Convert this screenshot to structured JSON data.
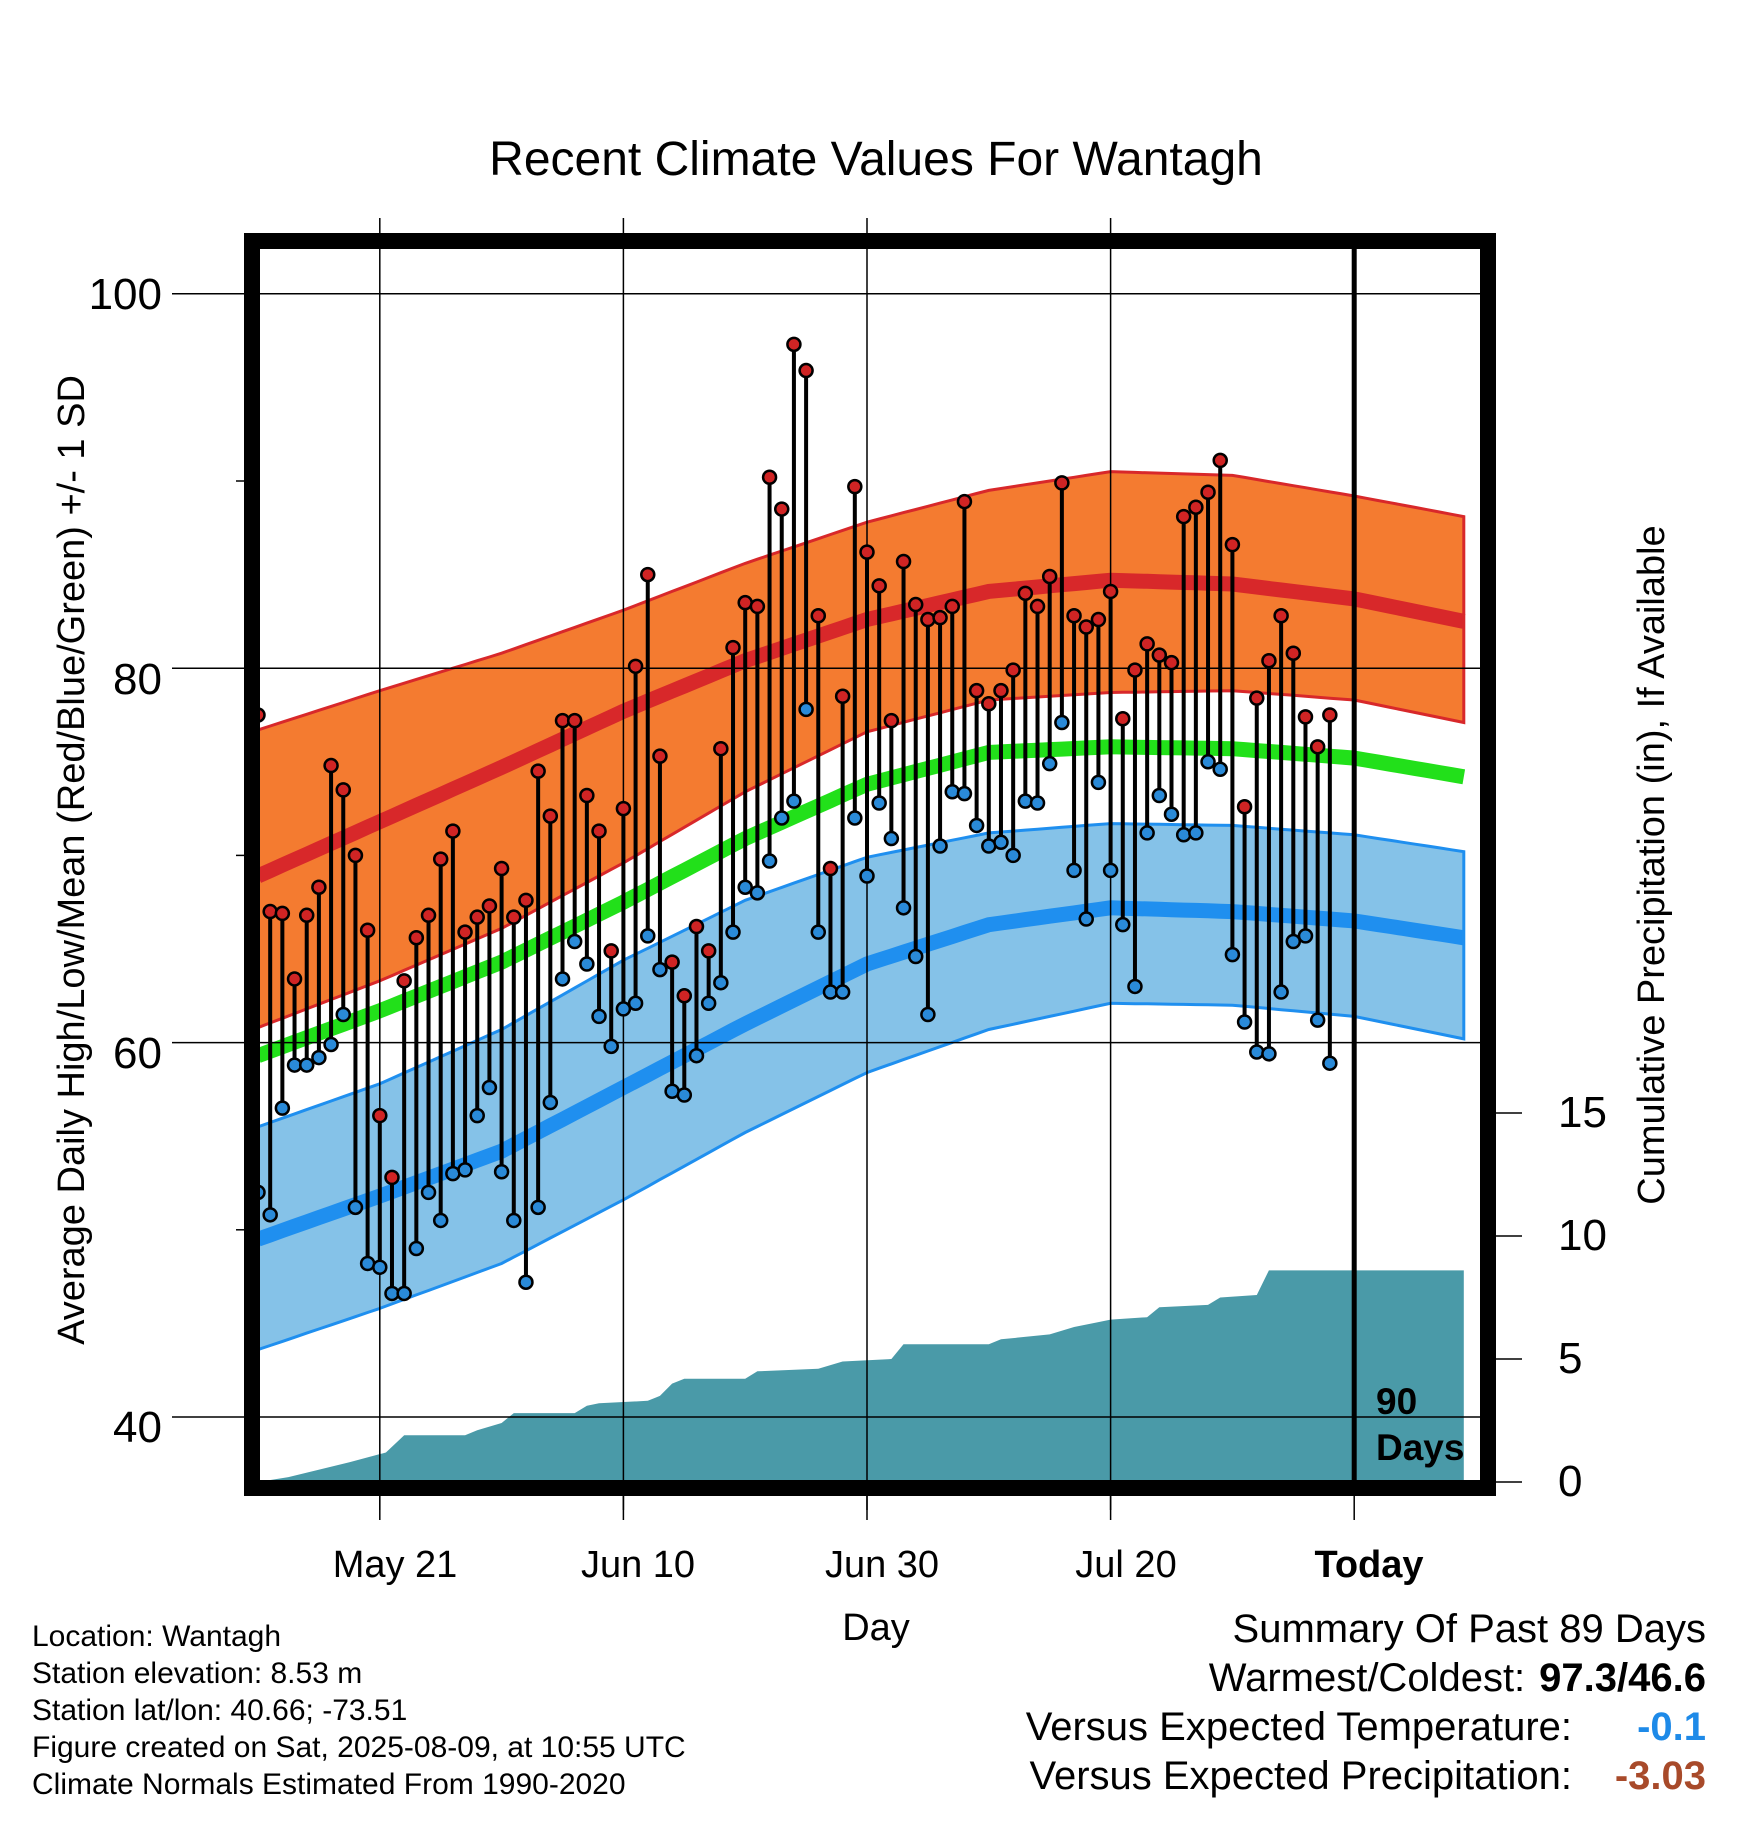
{
  "title": "Recent Climate Values For Wantagh",
  "xlabel": "Day",
  "ylabel_left": "Average Daily High/Low/Mean (Red/Blue/Green) +/- 1 SD",
  "ylabel_right": "Cumulative Precipitation (in), If Available",
  "x_tick_labels": [
    "May 21",
    "Jun 10",
    "Jun 30",
    "Jul 20",
    "Today"
  ],
  "y_left_ticks": [
    "40",
    "60",
    "80",
    "100"
  ],
  "y_right_ticks": [
    "0",
    "5",
    "10",
    "15"
  ],
  "today_marker": {
    "line1": "90",
    "line2": "Days"
  },
  "info": [
    "Location: Wantagh",
    "Station elevation: 8.53 m",
    "Station lat/lon: 40.66; -73.51",
    "Figure created on Sat, 2025-08-09, at 10:55 UTC",
    "Climate Normals Estimated From 1990-2020"
  ],
  "summary": {
    "heading": "Summary Of Past 89 Days",
    "warm_cold_label": "Warmest/Coldest:",
    "warm_cold_value": "97.3/46.6",
    "temp_label": "Versus Expected Temperature:",
    "temp_value": "-0.1",
    "precip_label": "Versus Expected Precipitation:",
    "precip_value": "-3.03"
  },
  "colors": {
    "high_band": "#f47b30",
    "high_line": "#d8282a",
    "low_band": "#85c2e8",
    "low_line": "#1f8fef",
    "mean_line": "#22e01a",
    "precip": "#4a9aa8",
    "high_dot": "#d02424",
    "low_dot": "#2a8ad8",
    "temp_value": "#1e8ae8",
    "precip_value": "#a84a2a"
  },
  "chart_data": {
    "type": "line",
    "title": "Recent Climate Values For Wantagh",
    "xlabel": "Day",
    "ylabel": "Average Daily High/Low/Mean (Red/Blue/Green) +/- 1 SD",
    "x_start_date": "2025-05-11",
    "x_range_days": [
      0,
      99
    ],
    "today_day": 90,
    "ylim": [
      37,
      104
    ],
    "y2lim": [
      0,
      30
    ],
    "grid": true,
    "normals": {
      "days": [
        0,
        10,
        20,
        30,
        40,
        50,
        60,
        70,
        80,
        90,
        99
      ],
      "high_mean": [
        68.9,
        71.8,
        74.7,
        77.7,
        80.4,
        82.6,
        84.1,
        84.7,
        84.5,
        83.7,
        82.5
      ],
      "high_upper": [
        76.7,
        78.8,
        80.8,
        83.1,
        85.6,
        87.8,
        89.5,
        90.5,
        90.3,
        89.2,
        88.1
      ],
      "high_lower": [
        60.8,
        63.3,
        66.1,
        69.6,
        73.4,
        76.6,
        78.3,
        78.7,
        78.8,
        78.3,
        77.1
      ],
      "mean": [
        59.3,
        61.7,
        64.3,
        67.5,
        70.9,
        73.8,
        75.5,
        75.8,
        75.7,
        75.2,
        74.2
      ],
      "low_mean": [
        49.5,
        51.8,
        54.2,
        57.6,
        61.0,
        64.2,
        66.3,
        67.2,
        67.0,
        66.5,
        65.6
      ],
      "low_upper": [
        55.5,
        57.8,
        60.7,
        64.4,
        67.6,
        69.9,
        71.2,
        71.7,
        71.6,
        71.1,
        70.2
      ],
      "low_lower": [
        43.6,
        45.8,
        48.2,
        51.6,
        55.2,
        58.4,
        60.7,
        62.1,
        62.0,
        61.4,
        60.2
      ]
    },
    "daily_high": [
      77.5,
      67.0,
      66.9,
      63.4,
      66.8,
      68.3,
      74.8,
      73.5,
      70.0,
      66.0,
      56.1,
      52.8,
      63.3,
      65.6,
      66.8,
      69.8,
      71.3,
      65.9,
      66.7,
      67.3,
      69.3,
      66.7,
      67.6,
      74.5,
      72.1,
      77.2,
      77.2,
      73.2,
      71.3,
      64.9,
      72.5,
      80.1,
      85.0,
      75.3,
      64.3,
      62.5,
      66.2,
      64.9,
      75.7,
      81.1,
      83.5,
      83.3,
      90.2,
      88.5,
      97.3,
      95.9,
      82.8,
      69.3,
      78.5,
      89.7,
      86.2,
      84.4,
      77.2,
      85.7,
      83.4,
      82.6,
      82.7,
      83.3,
      88.9,
      78.8,
      78.1,
      78.8,
      79.9,
      84.0,
      83.3,
      84.9,
      89.9,
      82.8,
      82.2,
      82.6,
      84.1,
      77.3,
      79.9,
      81.3,
      80.7,
      80.3,
      88.1,
      88.6,
      89.4,
      91.1,
      86.6,
      72.6,
      78.4,
      80.4,
      82.8,
      80.8,
      77.4,
      75.8,
      77.5
    ],
    "daily_low": [
      52.0,
      50.8,
      56.5,
      58.8,
      58.8,
      59.2,
      59.9,
      61.5,
      51.2,
      48.2,
      48.0,
      46.6,
      46.6,
      49.0,
      52.0,
      50.5,
      53.0,
      53.2,
      56.1,
      57.6,
      53.1,
      50.5,
      47.2,
      51.2,
      56.8,
      63.4,
      65.4,
      64.2,
      61.4,
      59.8,
      61.8,
      62.1,
      65.7,
      63.9,
      57.4,
      57.2,
      59.3,
      62.1,
      63.2,
      65.9,
      68.3,
      68.0,
      69.7,
      72.0,
      72.9,
      77.8,
      65.9,
      62.7,
      62.7,
      72.0,
      68.9,
      72.8,
      70.9,
      67.2,
      64.6,
      61.5,
      70.5,
      73.4,
      73.3,
      71.6,
      70.5,
      70.7,
      70.0,
      72.9,
      72.8,
      74.9,
      77.1,
      69.2,
      66.6,
      73.9,
      69.2,
      66.3,
      63.0,
      71.2,
      73.2,
      72.2,
      71.1,
      71.2,
      75.0,
      74.6,
      64.7,
      61.1,
      59.5,
      59.4,
      62.7,
      65.4,
      65.7,
      61.2,
      58.9
    ],
    "cumulative_precip": {
      "days": [
        0,
        2.5,
        7.5,
        10.5,
        12,
        17,
        18,
        20,
        21,
        26,
        27,
        28,
        32,
        33,
        34,
        35,
        40,
        41,
        46,
        48,
        52,
        53,
        60,
        61,
        65,
        67,
        69,
        70,
        73,
        74,
        78,
        79,
        82,
        83,
        99
      ],
      "values": [
        0.0,
        0.2,
        0.8,
        1.2,
        1.9,
        1.9,
        2.1,
        2.4,
        2.8,
        2.8,
        3.1,
        3.2,
        3.3,
        3.5,
        4.0,
        4.2,
        4.2,
        4.5,
        4.6,
        4.9,
        5.0,
        5.6,
        5.6,
        5.8,
        6.0,
        6.3,
        6.5,
        6.6,
        6.7,
        7.1,
        7.2,
        7.5,
        7.6,
        8.6,
        8.6
      ]
    }
  }
}
